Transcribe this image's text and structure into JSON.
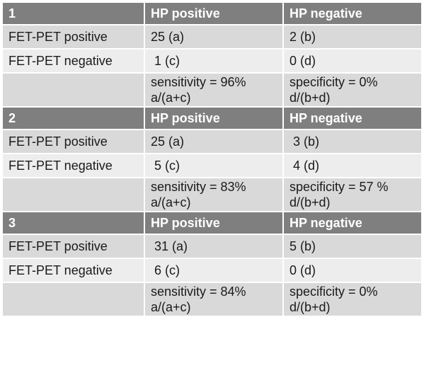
{
  "blocks": [
    {
      "header": [
        "1",
        "HP positive",
        "HP negative"
      ],
      "row_positive": [
        "FET-PET positive",
        "25 (a)",
        "2 (b)"
      ],
      "row_negative": [
        "FET-PET negative",
        " 1 (c)",
        "0 (d)"
      ],
      "result": {
        "sensitivity": "sensitivity = 96%",
        "sensitivity_formula": "a/(a+c)",
        "specificity": "specificity = 0%",
        "specificity_formula": "d/(b+d)"
      }
    },
    {
      "header": [
        "2",
        "HP positive",
        "HP negative"
      ],
      "row_positive": [
        "FET-PET positive",
        "25 (a)",
        " 3 (b)"
      ],
      "row_negative": [
        "FET-PET negative",
        " 5 (c)",
        " 4 (d)"
      ],
      "result": {
        "sensitivity": "sensitivity = 83%",
        "sensitivity_formula": "a/(a+c)",
        "specificity": "specificity = 57 %",
        "specificity_formula": "d/(b+d)"
      }
    },
    {
      "header": [
        "3",
        "HP positive",
        "HP negative"
      ],
      "row_positive": [
        "FET-PET positive",
        " 31 (a)",
        "5 (b)"
      ],
      "row_negative": [
        "FET-PET negative",
        " 6 (c)",
        "0 (d)"
      ],
      "result": {
        "sensitivity": "sensitivity = 84%",
        "sensitivity_formula": "a/(a+c)",
        "specificity": "specificity = 0%",
        "specificity_formula": "d/(b+d)"
      }
    }
  ]
}
